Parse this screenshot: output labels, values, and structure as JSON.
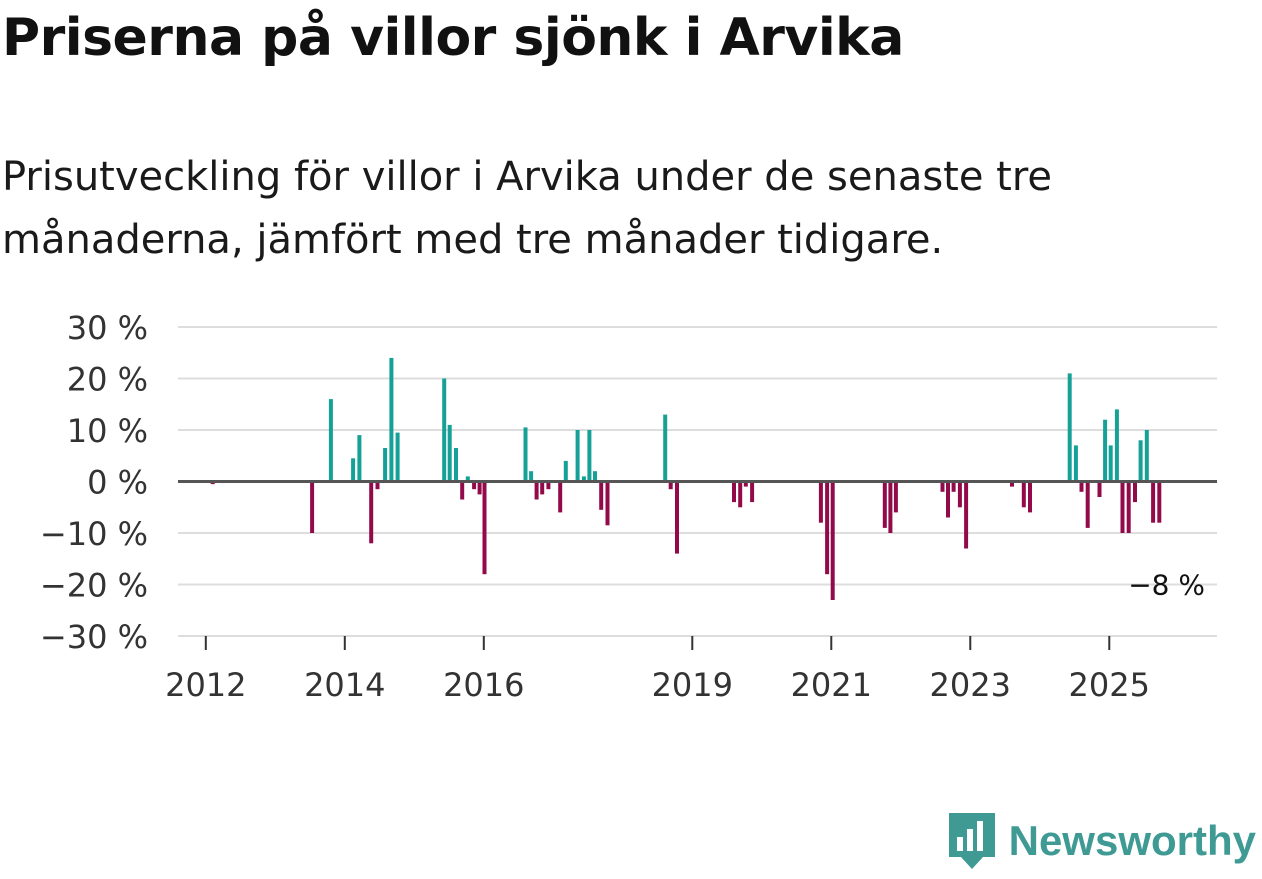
{
  "header": {
    "title": "Priserna på villor sjönk i Arvika",
    "subtitle": "Prisutveckling för villor i Arvika under de senaste tre månaderna, jämfört med tre månader tidigare."
  },
  "colors": {
    "positive": "#16a196",
    "negative": "#930a4b",
    "grid": "#dddddd",
    "zero": "#555555",
    "brand": "#3f9a94"
  },
  "chart_data": {
    "type": "bar",
    "title": "Priserna på villor sjönk i Arvika",
    "ylabel": "",
    "xlabel": "",
    "ylim": [
      -30,
      30
    ],
    "xlim": [
      2011.6,
      2026.55
    ],
    "y_ticks": [
      {
        "value": 30,
        "label": "30 %"
      },
      {
        "value": 20,
        "label": "20 %"
      },
      {
        "value": 10,
        "label": "10 %"
      },
      {
        "value": 0,
        "label": "0 %"
      },
      {
        "value": -10,
        "label": "−10 %"
      },
      {
        "value": -20,
        "label": "−20 %"
      },
      {
        "value": -30,
        "label": "−30 %"
      }
    ],
    "x_ticks": [
      {
        "value": 2012,
        "label": "2012"
      },
      {
        "value": 2014,
        "label": "2014"
      },
      {
        "value": 2016,
        "label": "2016"
      },
      {
        "value": 2019,
        "label": "2019"
      },
      {
        "value": 2021,
        "label": "2021"
      },
      {
        "value": 2023,
        "label": "2023"
      },
      {
        "value": 2025,
        "label": "2025"
      }
    ],
    "series": [
      {
        "name": "Prisutveckling",
        "points": [
          {
            "x": 2012.1,
            "y": -0.5
          },
          {
            "x": 2013.53,
            "y": -10
          },
          {
            "x": 2013.8,
            "y": 16
          },
          {
            "x": 2014.12,
            "y": 4.5
          },
          {
            "x": 2014.21,
            "y": 9
          },
          {
            "x": 2014.38,
            "y": -12
          },
          {
            "x": 2014.47,
            "y": -1.5
          },
          {
            "x": 2014.58,
            "y": 6.5
          },
          {
            "x": 2014.67,
            "y": 24
          },
          {
            "x": 2014.76,
            "y": 9.5
          },
          {
            "x": 2015.43,
            "y": 20
          },
          {
            "x": 2015.51,
            "y": 11
          },
          {
            "x": 2015.6,
            "y": 6.5
          },
          {
            "x": 2015.69,
            "y": -3.5
          },
          {
            "x": 2015.77,
            "y": 1
          },
          {
            "x": 2015.86,
            "y": -1.5
          },
          {
            "x": 2015.94,
            "y": -2.5
          },
          {
            "x": 2016.01,
            "y": -18
          },
          {
            "x": 2016.6,
            "y": 10.5
          },
          {
            "x": 2016.68,
            "y": 2
          },
          {
            "x": 2016.76,
            "y": -3.5
          },
          {
            "x": 2016.84,
            "y": -2.5
          },
          {
            "x": 2016.93,
            "y": -1.5
          },
          {
            "x": 2017.1,
            "y": -6
          },
          {
            "x": 2017.18,
            "y": 4
          },
          {
            "x": 2017.35,
            "y": 10
          },
          {
            "x": 2017.44,
            "y": 1
          },
          {
            "x": 2017.52,
            "y": 10
          },
          {
            "x": 2017.6,
            "y": 2
          },
          {
            "x": 2017.69,
            "y": -5.5
          },
          {
            "x": 2017.78,
            "y": -8.5
          },
          {
            "x": 2018.61,
            "y": 13
          },
          {
            "x": 2018.69,
            "y": -1.5
          },
          {
            "x": 2018.78,
            "y": -14
          },
          {
            "x": 2019.6,
            "y": -4
          },
          {
            "x": 2019.69,
            "y": -5
          },
          {
            "x": 2019.77,
            "y": -1
          },
          {
            "x": 2019.86,
            "y": -4
          },
          {
            "x": 2020.85,
            "y": -8
          },
          {
            "x": 2020.94,
            "y": -18
          },
          {
            "x": 2021.02,
            "y": -23
          },
          {
            "x": 2021.77,
            "y": -9
          },
          {
            "x": 2021.85,
            "y": -10
          },
          {
            "x": 2021.93,
            "y": -6
          },
          {
            "x": 2022.6,
            "y": -2
          },
          {
            "x": 2022.68,
            "y": -7
          },
          {
            "x": 2022.76,
            "y": -2
          },
          {
            "x": 2022.85,
            "y": -5
          },
          {
            "x": 2022.94,
            "y": -13
          },
          {
            "x": 2023.6,
            "y": -1
          },
          {
            "x": 2023.77,
            "y": -5
          },
          {
            "x": 2023.86,
            "y": -6
          },
          {
            "x": 2024.43,
            "y": 21
          },
          {
            "x": 2024.52,
            "y": 7
          },
          {
            "x": 2024.6,
            "y": -2
          },
          {
            "x": 2024.69,
            "y": -9
          },
          {
            "x": 2024.86,
            "y": -3
          },
          {
            "x": 2024.94,
            "y": 12
          },
          {
            "x": 2025.02,
            "y": 7
          },
          {
            "x": 2025.11,
            "y": 14
          },
          {
            "x": 2025.19,
            "y": -10
          },
          {
            "x": 2025.28,
            "y": -10
          },
          {
            "x": 2025.37,
            "y": -4
          },
          {
            "x": 2025.45,
            "y": 8
          },
          {
            "x": 2025.54,
            "y": 10
          },
          {
            "x": 2025.63,
            "y": -8
          },
          {
            "x": 2025.72,
            "y": -8
          }
        ]
      }
    ],
    "annotations": [
      {
        "x": 2025.72,
        "y": -8,
        "text": "−8 %"
      }
    ]
  },
  "footer": {
    "brand": "Newsworthy"
  }
}
